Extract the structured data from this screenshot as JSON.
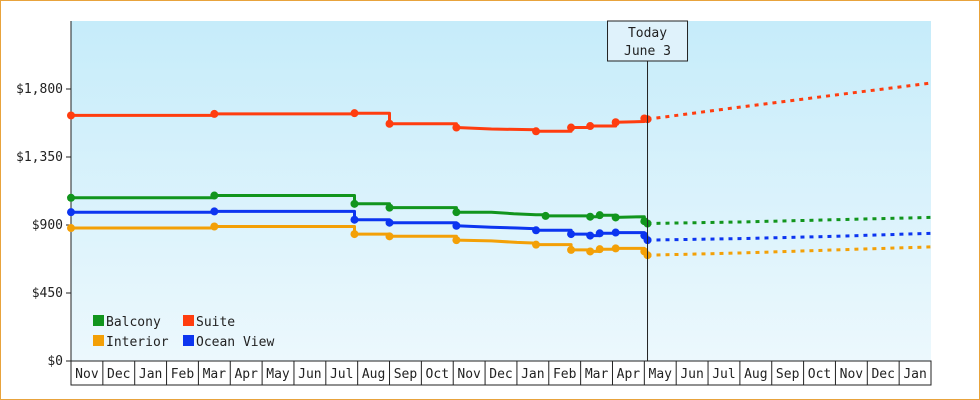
{
  "chart_data": {
    "type": "line",
    "title": "",
    "xlabel": "",
    "ylabel": "",
    "ylim": [
      0,
      2250
    ],
    "yticks": [
      0,
      450,
      900,
      1350,
      1800
    ],
    "ytick_labels": [
      "$0",
      "$450",
      "$900",
      "$1,350",
      "$1,800"
    ],
    "grid": false,
    "legend_position": "bottom-left",
    "months": [
      "Nov",
      "Dec",
      "Jan",
      "Feb",
      "Mar",
      "Apr",
      "May",
      "Jun",
      "Jul",
      "Aug",
      "Sep",
      "Oct",
      "Nov",
      "Dec",
      "Jan",
      "Feb",
      "Mar",
      "Apr",
      "May",
      "Jun",
      "Jul",
      "Aug",
      "Sep",
      "Oct",
      "Nov",
      "Dec",
      "Jan"
    ],
    "today_marker": {
      "line1": "Today",
      "line2": "June 3",
      "month_index": 18.1
    },
    "series": [
      {
        "name": "Balcony",
        "color": "#11951d",
        "points": [
          [
            0,
            1080
          ],
          [
            4.5,
            1080
          ],
          [
            4.5,
            1095
          ],
          [
            8.9,
            1095
          ],
          [
            8.9,
            1040
          ],
          [
            10,
            1040
          ],
          [
            10,
            1015
          ],
          [
            12.1,
            1015
          ],
          [
            12.1,
            985
          ],
          [
            13.2,
            985
          ],
          [
            13.9,
            975
          ],
          [
            14.6,
            968
          ],
          [
            14.9,
            968
          ],
          [
            14.9,
            960
          ],
          [
            16.3,
            960
          ],
          [
            16.3,
            955
          ],
          [
            16.6,
            955
          ],
          [
            16.6,
            965
          ],
          [
            17.1,
            965
          ],
          [
            17.1,
            950
          ],
          [
            18,
            955
          ],
          [
            18,
            925
          ],
          [
            18.1,
            910
          ]
        ],
        "forecast": [
          [
            18.1,
            910
          ],
          [
            21,
            920
          ],
          [
            24,
            935
          ],
          [
            27,
            950
          ]
        ]
      },
      {
        "name": "Interior",
        "color": "#f3a007",
        "points": [
          [
            0,
            880
          ],
          [
            4.5,
            880
          ],
          [
            4.5,
            890
          ],
          [
            8.9,
            890
          ],
          [
            8.9,
            840
          ],
          [
            10,
            840
          ],
          [
            10,
            825
          ],
          [
            12.1,
            825
          ],
          [
            12.1,
            800
          ],
          [
            13.2,
            795
          ],
          [
            14,
            785
          ],
          [
            14.6,
            780
          ],
          [
            14.6,
            770
          ],
          [
            15.7,
            770
          ],
          [
            15.7,
            735
          ],
          [
            16.3,
            735
          ],
          [
            16.3,
            725
          ],
          [
            16.6,
            725
          ],
          [
            16.6,
            740
          ],
          [
            17.1,
            740
          ],
          [
            17.1,
            745
          ],
          [
            18,
            745
          ],
          [
            18,
            725
          ],
          [
            18.1,
            700
          ]
        ],
        "forecast": [
          [
            18.1,
            700
          ],
          [
            21,
            715
          ],
          [
            24,
            735
          ],
          [
            27,
            755
          ]
        ]
      },
      {
        "name": "Suite",
        "color": "#ff3d0f",
        "points": [
          [
            0,
            1625
          ],
          [
            4.5,
            1625
          ],
          [
            4.5,
            1635
          ],
          [
            8.9,
            1635
          ],
          [
            8.9,
            1640
          ],
          [
            10,
            1640
          ],
          [
            10,
            1570
          ],
          [
            12.1,
            1570
          ],
          [
            12.1,
            1545
          ],
          [
            13.2,
            1535
          ],
          [
            14.6,
            1530
          ],
          [
            14.6,
            1520
          ],
          [
            15.7,
            1520
          ],
          [
            15.7,
            1545
          ],
          [
            16.3,
            1545
          ],
          [
            16.3,
            1555
          ],
          [
            17.1,
            1555
          ],
          [
            17.1,
            1580
          ],
          [
            18,
            1585
          ],
          [
            18,
            1605
          ],
          [
            18.1,
            1600
          ]
        ],
        "forecast": [
          [
            18.1,
            1600
          ],
          [
            21,
            1680
          ],
          [
            24,
            1760
          ],
          [
            27,
            1840
          ]
        ]
      },
      {
        "name": "Ocean View",
        "color": "#0c35f0",
        "points": [
          [
            0,
            985
          ],
          [
            4.5,
            985
          ],
          [
            4.5,
            990
          ],
          [
            8.9,
            990
          ],
          [
            8.9,
            935
          ],
          [
            10,
            935
          ],
          [
            10,
            915
          ],
          [
            12.1,
            915
          ],
          [
            12.1,
            895
          ],
          [
            13.2,
            885
          ],
          [
            14,
            880
          ],
          [
            14.6,
            875
          ],
          [
            14.6,
            865
          ],
          [
            15.7,
            865
          ],
          [
            15.7,
            840
          ],
          [
            16.3,
            840
          ],
          [
            16.3,
            830
          ],
          [
            16.6,
            830
          ],
          [
            16.6,
            845
          ],
          [
            17.1,
            845
          ],
          [
            17.1,
            850
          ],
          [
            18,
            850
          ],
          [
            18,
            830
          ],
          [
            18.1,
            800
          ]
        ],
        "forecast": [
          [
            18.1,
            800
          ],
          [
            21,
            810
          ],
          [
            24,
            825
          ],
          [
            27,
            845
          ]
        ]
      }
    ],
    "legend": [
      {
        "name": "Balcony",
        "color": "#11951d"
      },
      {
        "name": "Suite",
        "color": "#ff3d0f"
      },
      {
        "name": "Interior",
        "color": "#f3a007"
      },
      {
        "name": "Ocean View",
        "color": "#0c35f0"
      }
    ]
  }
}
